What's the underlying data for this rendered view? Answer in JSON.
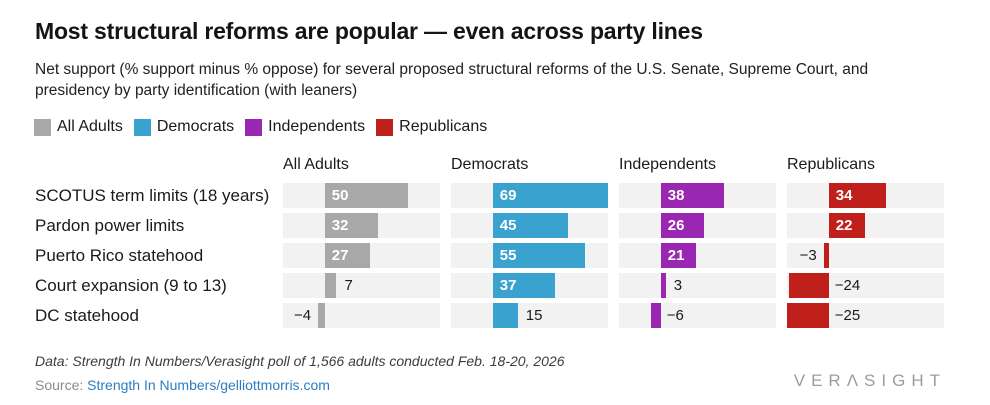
{
  "chart_data": {
    "type": "bar",
    "orientation": "horizontal",
    "layout": "small-multiples-by-series",
    "title": "Most structural reforms are popular — even across party lines",
    "subtitle": "Net support (% support minus % oppose) for several proposed structural reforms of the U.S. Senate, Supreme Court, and presidency by party identification (with leaners)",
    "categories": [
      "SCOTUS term limits (18 years)",
      "Pardon power limits",
      "Puerto Rico statehood",
      "Court expansion (9 to 13)",
      "DC statehood"
    ],
    "series": [
      {
        "name": "All Adults",
        "color": "#a8a8a8",
        "values": [
          50,
          32,
          27,
          7,
          -4
        ]
      },
      {
        "name": "Democrats",
        "color": "#3aa2cf",
        "values": [
          69,
          45,
          55,
          37,
          15
        ]
      },
      {
        "name": "Independents",
        "color": "#9a27b1",
        "values": [
          38,
          26,
          21,
          3,
          -6
        ]
      },
      {
        "name": "Republicans",
        "color": "#c0201c",
        "values": [
          34,
          22,
          -3,
          -24,
          -25
        ]
      }
    ],
    "xlim": [
      -25,
      69
    ],
    "grid": false,
    "legend_position": "top",
    "row_track_color": "#f2f2f2",
    "value_label_inside_color": "#ffffff",
    "value_label_outside_color": "#1a1a1a"
  },
  "footer": {
    "data_note": "Data: Strength In Numbers/Verasight poll of 1,566 adults conducted Feb. 18-20, 2026",
    "source_prefix": "Source: ",
    "source_link": "Strength In Numbers/gelliottmorris.com",
    "logo": "VERΛSIGHT"
  }
}
